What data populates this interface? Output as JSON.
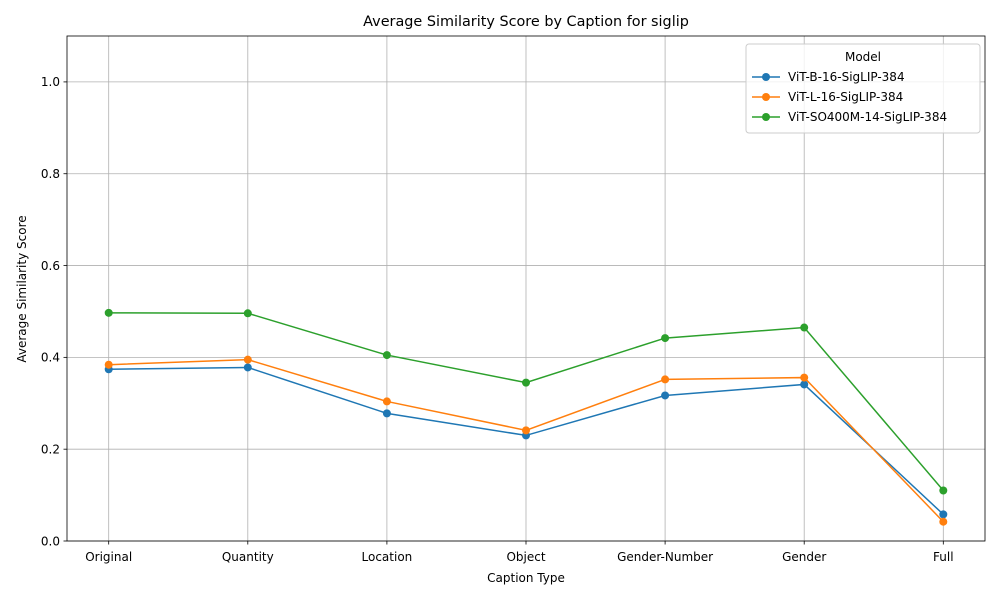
{
  "chart_data": {
    "type": "line",
    "title": "Average Similarity Score by Caption for siglip",
    "xlabel": "Caption Type",
    "ylabel": "Average Similarity Score",
    "categories": [
      "Original",
      "Quantity",
      "Location",
      "Object",
      "Gender-Number",
      "Gender",
      "Full"
    ],
    "ylim": [
      0.0,
      1.1
    ],
    "yticks": [
      0.0,
      0.2,
      0.4,
      0.6,
      0.8,
      1.0
    ],
    "ytick_labels": [
      "0.0",
      "0.2",
      "0.4",
      "0.6",
      "0.8",
      "1.0"
    ],
    "grid": true,
    "legend": {
      "title": "Model",
      "placement": "top-right"
    },
    "series": [
      {
        "name": "ViT-B-16-SigLIP-384",
        "color": "#1f77b4",
        "values": [
          0.374,
          0.378,
          0.278,
          0.23,
          0.317,
          0.341,
          0.058
        ]
      },
      {
        "name": "ViT-L-16-SigLIP-384",
        "color": "#ff7f0e",
        "values": [
          0.384,
          0.395,
          0.304,
          0.241,
          0.352,
          0.356,
          0.042
        ]
      },
      {
        "name": "ViT-SO400M-14-SigLIP-384",
        "color": "#2ca02c",
        "values": [
          0.497,
          0.496,
          0.405,
          0.345,
          0.442,
          0.465,
          0.11
        ]
      }
    ]
  }
}
